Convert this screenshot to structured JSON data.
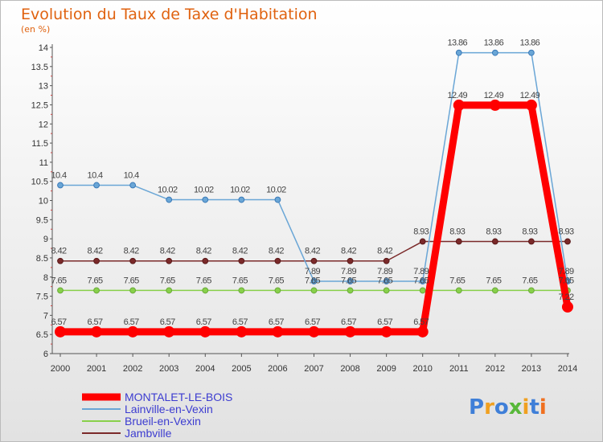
{
  "header": {
    "title": "Evolution du Taux de Taxe d'Habitation",
    "subtitle": "(en %)"
  },
  "logo": {
    "text": "Proxiti"
  },
  "chart_data": {
    "type": "line",
    "title": "Evolution du Taux de Taxe d'Habitation",
    "ylabel": "(en %)",
    "xlabel": "",
    "x": [
      2000,
      2001,
      2002,
      2003,
      2004,
      2005,
      2006,
      2007,
      2008,
      2009,
      2010,
      2011,
      2012,
      2013,
      2014
    ],
    "ylim": [
      6,
      14
    ],
    "yticks": [
      6,
      6.5,
      7,
      7.5,
      8,
      8.5,
      9,
      9.5,
      10,
      10.5,
      11,
      11.5,
      12,
      12.5,
      13,
      13.5,
      14
    ],
    "grid": false,
    "legend_position": "bottom-left",
    "series": [
      {
        "name": "Jambville",
        "color": "#7b2a2a",
        "values": [
          8.42,
          8.42,
          8.42,
          8.42,
          8.42,
          8.42,
          8.42,
          8.42,
          8.42,
          8.42,
          8.93,
          8.93,
          8.93,
          8.93,
          8.93
        ],
        "labels": [
          "8.42",
          "8.42",
          "8.42",
          "8.42",
          "8.42",
          "8.42",
          "8.42",
          "8.42",
          "8.42",
          "8.42",
          "8.93",
          "8.93",
          "8.93",
          "8.93",
          "8.93"
        ]
      },
      {
        "name": "Brueil-en-Vexin",
        "color": "#88d04a",
        "values": [
          7.65,
          7.65,
          7.65,
          7.65,
          7.65,
          7.65,
          7.65,
          7.65,
          7.65,
          7.65,
          7.65,
          7.65,
          7.65,
          7.65,
          7.65
        ],
        "labels": [
          "7.65",
          "7.65",
          "7.65",
          "7.65",
          "7.65",
          "7.65",
          "7.65",
          "7.65",
          "7.65",
          "7.65",
          "7.65",
          "7.65",
          "7.65",
          "7.65",
          "7.65"
        ]
      },
      {
        "name": "Lainville-en-Vexin",
        "color": "#6aa6d6",
        "values": [
          10.4,
          10.4,
          10.4,
          10.02,
          10.02,
          10.02,
          10.02,
          7.89,
          7.89,
          7.89,
          7.89,
          13.86,
          13.86,
          13.86,
          7.89
        ],
        "labels": [
          "10.4",
          "10.4",
          "10.4",
          "10.02",
          "10.02",
          "10.02",
          "10.02",
          "7.89",
          "7.89",
          "7.89",
          "7.89",
          "13.86",
          "13.86",
          "13.86",
          "7.89"
        ]
      },
      {
        "name": "MONTALET-LE-BOIS",
        "color": "#ff0000",
        "values": [
          6.57,
          6.57,
          6.57,
          6.57,
          6.57,
          6.57,
          6.57,
          6.57,
          6.57,
          6.57,
          6.57,
          12.49,
          12.49,
          12.49,
          7.22
        ],
        "labels": [
          "6.57",
          "6.57",
          "6.57",
          "6.57",
          "6.57",
          "6.57",
          "6.57",
          "6.57",
          "6.57",
          "6.57",
          "6.57",
          "12.49",
          "12.49",
          "12.49",
          "7.22"
        ]
      }
    ],
    "legend_order": [
      "MONTALET-LE-BOIS",
      "Lainville-en-Vexin",
      "Brueil-en-Vexin",
      "Jambville"
    ]
  }
}
